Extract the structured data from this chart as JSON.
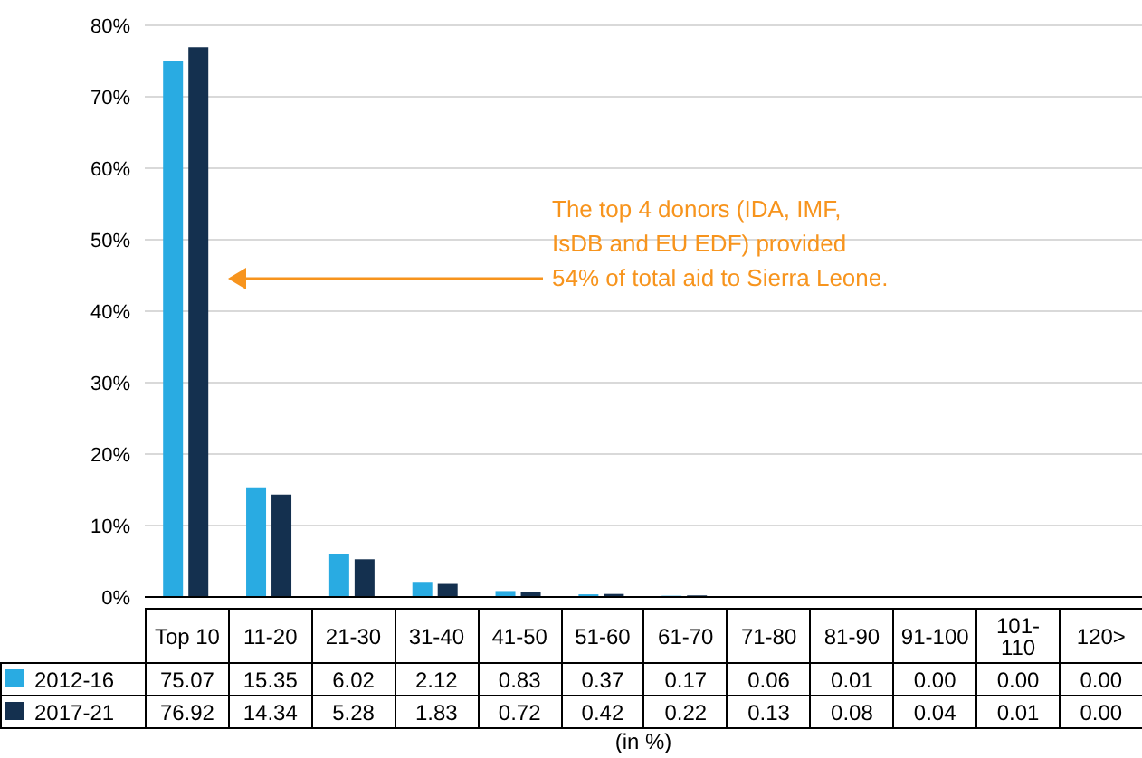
{
  "chart_data": {
    "type": "bar",
    "xlabel": "(in %)",
    "categories": [
      "Top 10",
      "11-20",
      "21-30",
      "31-40",
      "41-50",
      "51-60",
      "61-70",
      "71-80",
      "81-90",
      "91-100",
      "101-110",
      "120>"
    ],
    "series": [
      {
        "name": "2012-16",
        "color": "#29abe2",
        "values": [
          75.07,
          15.35,
          6.02,
          2.12,
          0.83,
          0.37,
          0.17,
          0.06,
          0.01,
          0.0,
          0.0,
          0.0
        ],
        "value_labels": [
          "75.07",
          "15.35",
          "6.02",
          "2.12",
          "0.83",
          "0.37",
          "0.17",
          "0.06",
          "0.01",
          "0.00",
          "0.00",
          "0.00"
        ]
      },
      {
        "name": "2017-21",
        "color": "#14304f",
        "values": [
          76.92,
          14.34,
          5.28,
          1.83,
          0.72,
          0.42,
          0.22,
          0.13,
          0.08,
          0.04,
          0.01,
          0.0
        ],
        "value_labels": [
          "76.92",
          "14.34",
          "5.28",
          "1.83",
          "0.72",
          "0.42",
          "0.22",
          "0.13",
          "0.08",
          "0.04",
          "0.01",
          "0.00"
        ]
      }
    ],
    "ylim": [
      0,
      80
    ],
    "yticks": [
      {
        "value": 0,
        "label": "0%"
      },
      {
        "value": 10,
        "label": "10%"
      },
      {
        "value": 20,
        "label": "20%"
      },
      {
        "value": 30,
        "label": "30%"
      },
      {
        "value": 40,
        "label": "40%"
      },
      {
        "value": 50,
        "label": "50%"
      },
      {
        "value": 60,
        "label": "60%"
      },
      {
        "value": 70,
        "label": "70%"
      },
      {
        "value": 80,
        "label": "80%"
      }
    ],
    "grid": "y",
    "legend": "bottom",
    "annotations": [
      "The top 4 donors (IDA, IMF, IsDB and EU EDF) provided 54% of total aid to Sierra Leone."
    ]
  }
}
